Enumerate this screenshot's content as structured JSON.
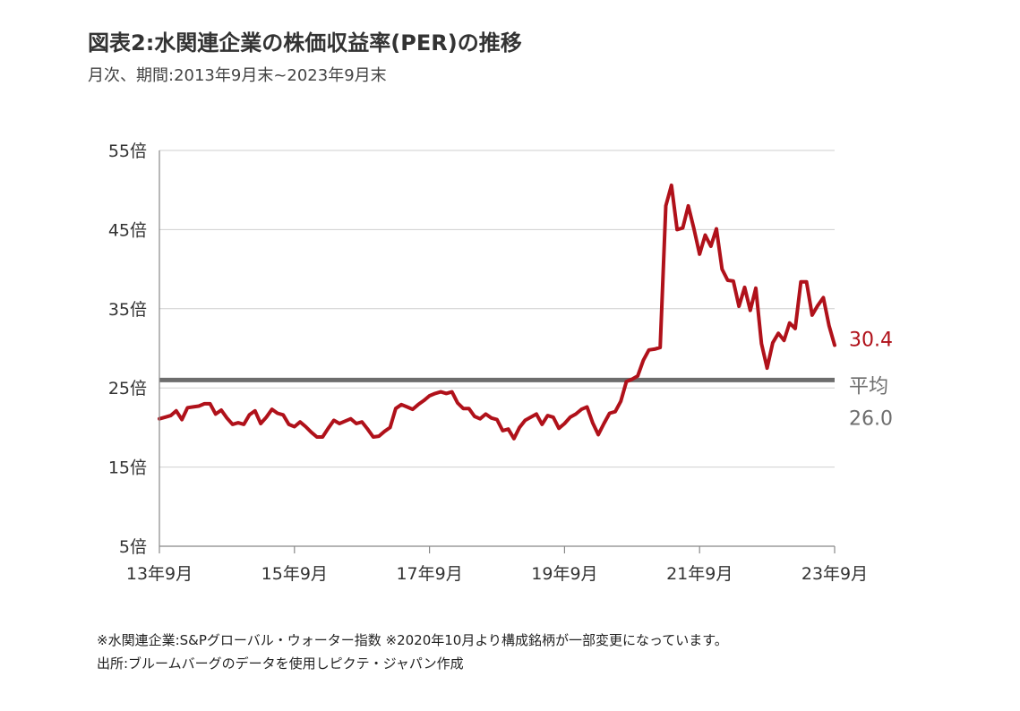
{
  "title": "図表2:水関連企業の株価収益率(PER)の推移",
  "subtitle": "月次、期間:2013年9月末~2023年9月末",
  "notes": [
    "※水関連企業:S&Pグローバル・ウォーター指数 ※2020年10月より構成銘柄が一部変更になっています。",
    "出所:ブルームバーグのデータを使用しピクテ・ジャパン作成"
  ],
  "chart_data": {
    "type": "line",
    "ylim": [
      5,
      55
    ],
    "yticks": [
      5,
      15,
      25,
      35,
      45,
      55
    ],
    "ytick_labels": [
      "5倍",
      "15倍",
      "25倍",
      "35倍",
      "45倍",
      "55倍"
    ],
    "xticks": [
      0,
      24,
      48,
      72,
      96,
      120
    ],
    "xtick_labels": [
      "13年9月",
      "15年9月",
      "17年9月",
      "19年9月",
      "21年9月",
      "23年9月"
    ],
    "grid": true,
    "series": [
      {
        "color": "#b0111a",
        "values": [
          21.1,
          21.3,
          21.5,
          22.1,
          21.0,
          22.5,
          22.6,
          22.7,
          23.0,
          23.0,
          21.7,
          22.2,
          21.2,
          20.4,
          20.6,
          20.4,
          21.6,
          22.1,
          20.5,
          21.3,
          22.3,
          21.8,
          21.6,
          20.4,
          20.1,
          20.7,
          20.1,
          19.4,
          18.8,
          18.8,
          19.9,
          20.9,
          20.5,
          20.8,
          21.1,
          20.5,
          20.7,
          19.8,
          18.8,
          18.9,
          19.5,
          20.0,
          22.4,
          22.9,
          22.6,
          22.3,
          22.9,
          23.4,
          24.0,
          24.3,
          24.5,
          24.3,
          24.5,
          23.1,
          22.4,
          22.4,
          21.4,
          21.1,
          21.7,
          21.2,
          21.0,
          19.6,
          19.8,
          18.6,
          20.0,
          20.9,
          21.3,
          21.7,
          20.4,
          21.5,
          21.3,
          19.9,
          20.5,
          21.3,
          21.7,
          22.3,
          22.6,
          20.6,
          19.1,
          20.5,
          21.8,
          22.0,
          23.3,
          25.8,
          26.1,
          26.5,
          28.5,
          29.8,
          29.9,
          30.1,
          48.0,
          50.6,
          45.0,
          45.2,
          48.0,
          45.1,
          41.9,
          44.3,
          42.9,
          45.1,
          40.0,
          38.6,
          38.5,
          35.3,
          37.7,
          34.8,
          37.6,
          30.6,
          27.5,
          30.7,
          31.9,
          31.0,
          33.2,
          32.5,
          38.4,
          38.4,
          34.2,
          35.4,
          36.4,
          32.9,
          30.4
        ]
      }
    ],
    "average": {
      "value": 26.0,
      "color": "#6d6d6d",
      "label_line1": "平均",
      "label_line2": "26.0"
    },
    "last_value_label": "30.4"
  }
}
